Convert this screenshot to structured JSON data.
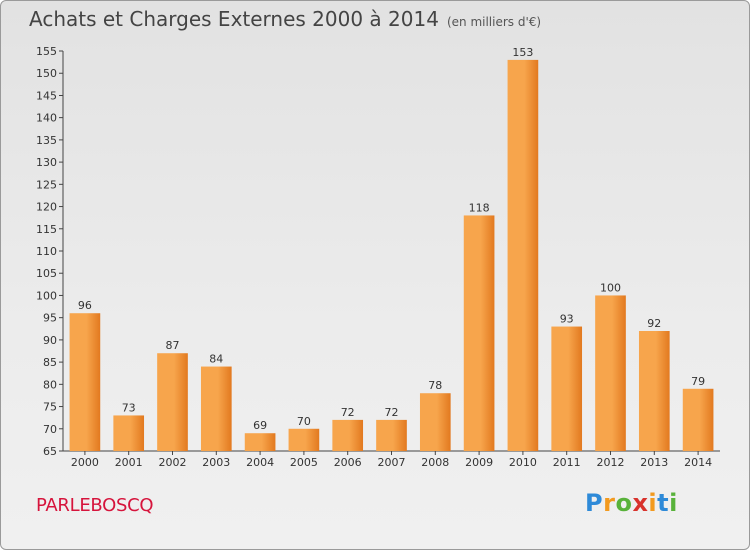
{
  "header": {
    "title": "Achats et Charges Externes 2000 à 2014",
    "subtitle": "(en milliers d'€)"
  },
  "footer": {
    "commune": "PARLEBOSCQ",
    "logo": [
      "P",
      "r",
      "o",
      "x",
      "i",
      "t",
      "i"
    ]
  },
  "colors": {
    "bar_light": "#f7a54c",
    "bar_dark": "#e2791f",
    "commune_text": "#d6143c"
  },
  "chart_data": {
    "type": "bar",
    "title": "Achats et Charges Externes 2000 à 2014",
    "subtitle": "(en milliers d'€)",
    "categories": [
      "2000",
      "2001",
      "2002",
      "2003",
      "2004",
      "2005",
      "2006",
      "2007",
      "2008",
      "2009",
      "2010",
      "2011",
      "2012",
      "2013",
      "2014"
    ],
    "values": [
      96,
      73,
      87,
      84,
      69,
      70,
      72,
      72,
      78,
      118,
      153,
      93,
      100,
      92,
      79
    ],
    "ylim": [
      65,
      155
    ],
    "yticks": [
      65,
      70,
      75,
      80,
      85,
      90,
      95,
      100,
      105,
      110,
      115,
      120,
      125,
      130,
      135,
      140,
      145,
      150,
      155
    ],
    "grid": false,
    "data_labels": true
  }
}
